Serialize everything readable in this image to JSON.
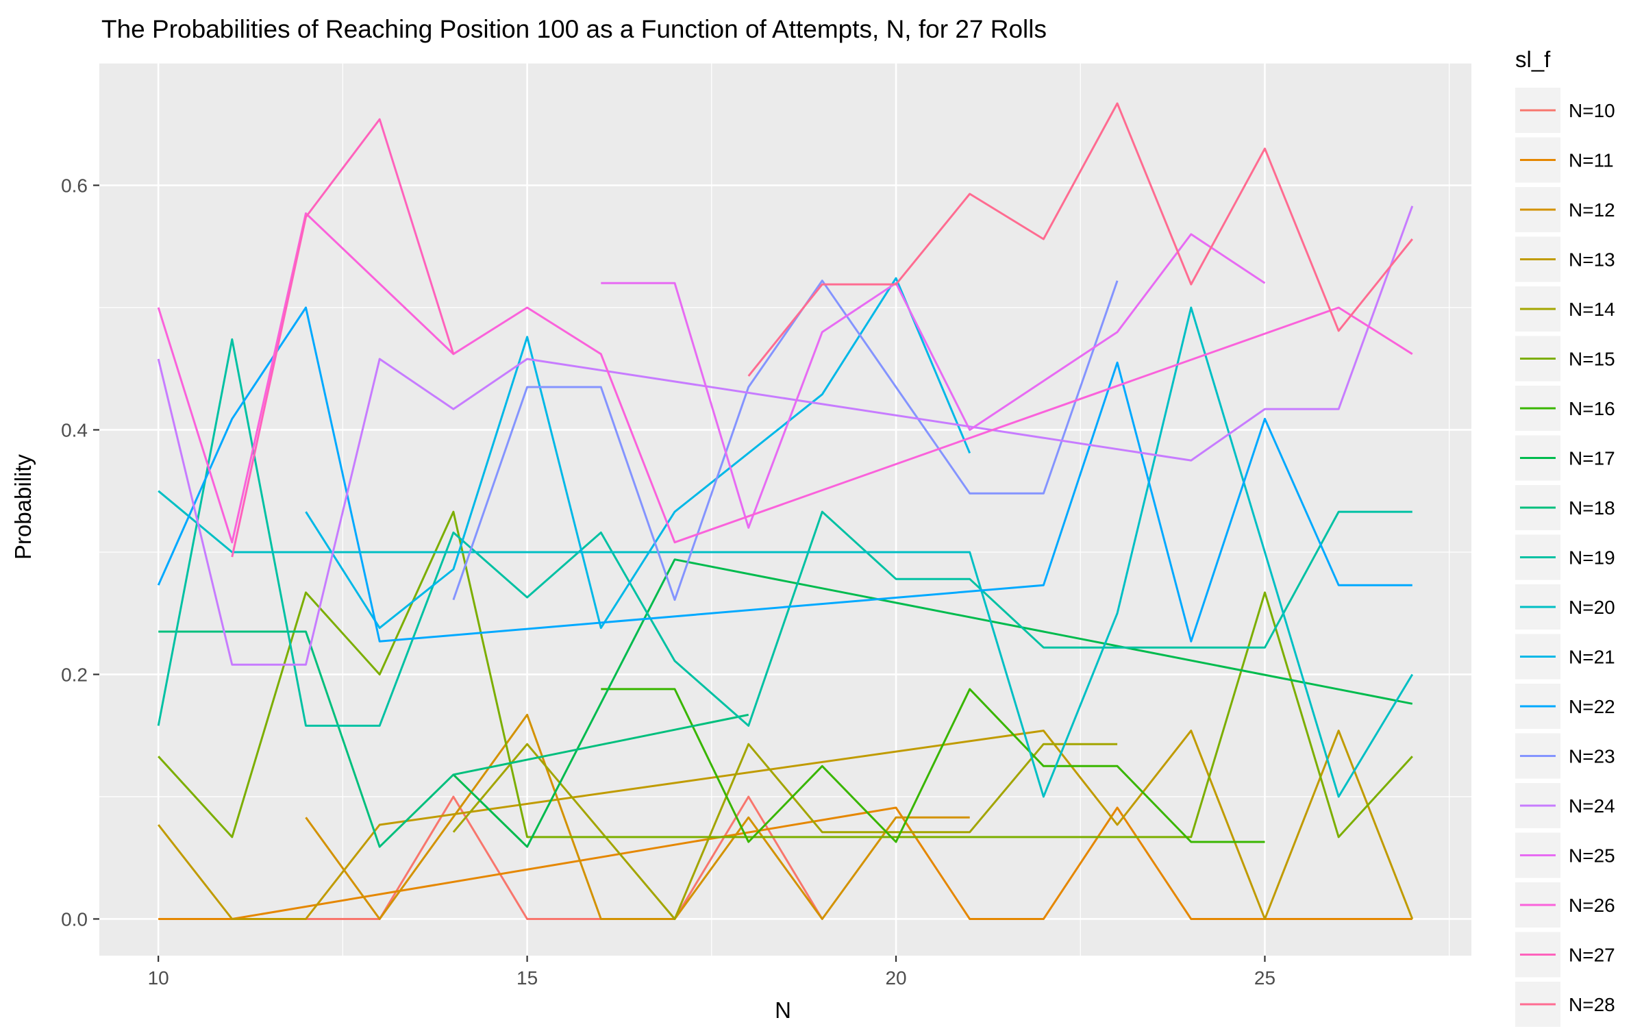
{
  "chart_data": {
    "type": "line",
    "title": "The Probabilities of Reaching Position 100 as a Function of Attempts, N, for 27 Rolls",
    "xlabel": "N",
    "ylabel": "Probability",
    "xlim": [
      9.2,
      27.8
    ],
    "ylim": [
      -0.03,
      0.7
    ],
    "x_ticks": [
      10,
      15,
      20,
      25
    ],
    "y_ticks": [
      0.0,
      0.2,
      0.4,
      0.6
    ],
    "x_tick_labels": [
      "10",
      "15",
      "20",
      "25"
    ],
    "y_tick_labels": [
      "0.0",
      "0.2",
      "0.4",
      "0.6"
    ],
    "grid": true,
    "legend": {
      "title": "sl_f",
      "position": "right"
    },
    "panel_background": "#EBEBEB",
    "series": [
      {
        "name": "N=10",
        "color": "#F8766D",
        "points": [
          [
            10,
            0.0
          ],
          [
            13,
            0.0
          ],
          [
            14,
            0.1
          ],
          [
            15,
            0.0
          ],
          [
            17,
            0.0
          ],
          [
            18,
            0.1
          ],
          [
            19,
            0.0
          ]
        ]
      },
      {
        "name": "N=11",
        "color": "#E58700",
        "points": [
          [
            10,
            0.0
          ],
          [
            11,
            0.0
          ],
          [
            20,
            0.091
          ],
          [
            21,
            0.0
          ],
          [
            22,
            0.0
          ],
          [
            23,
            0.091
          ],
          [
            24,
            0.0
          ],
          [
            27,
            0.0
          ]
        ]
      },
      {
        "name": "N=12",
        "color": "#D39200",
        "points": [
          [
            12,
            0.083
          ],
          [
            13,
            0.0
          ],
          [
            15,
            0.167
          ],
          [
            16,
            0.0
          ],
          [
            17,
            0.0
          ],
          [
            18,
            0.083
          ],
          [
            19,
            0.0
          ],
          [
            20,
            0.083
          ],
          [
            21,
            0.083
          ]
        ]
      },
      {
        "name": "N=13",
        "color": "#C09B00",
        "points": [
          [
            10,
            0.077
          ],
          [
            11,
            0.0
          ],
          [
            12,
            0.0
          ],
          [
            13,
            0.077
          ],
          [
            22,
            0.154
          ],
          [
            23,
            0.077
          ],
          [
            24,
            0.154
          ],
          [
            25,
            0.0
          ],
          [
            26,
            0.154
          ],
          [
            27,
            0.0
          ]
        ]
      },
      {
        "name": "N=14",
        "color": "#A3A500",
        "points": [
          [
            14,
            0.071
          ],
          [
            15,
            0.143
          ],
          [
            17,
            0.0
          ],
          [
            18,
            0.143
          ],
          [
            19,
            0.071
          ],
          [
            21,
            0.071
          ],
          [
            22,
            0.143
          ],
          [
            23,
            0.143
          ]
        ]
      },
      {
        "name": "N=15",
        "color": "#7CAE00",
        "points": [
          [
            10,
            0.133
          ],
          [
            11,
            0.067
          ],
          [
            12,
            0.267
          ],
          [
            13,
            0.2
          ],
          [
            14,
            0.333
          ],
          [
            15,
            0.067
          ],
          [
            24,
            0.067
          ],
          [
            25,
            0.267
          ],
          [
            26,
            0.067
          ],
          [
            27,
            0.133
          ]
        ]
      },
      {
        "name": "N=16",
        "color": "#39B600",
        "points": [
          [
            16,
            0.188
          ],
          [
            17,
            0.188
          ],
          [
            18,
            0.063
          ],
          [
            19,
            0.125
          ],
          [
            20,
            0.063
          ],
          [
            21,
            0.188
          ],
          [
            22,
            0.125
          ],
          [
            23,
            0.125
          ],
          [
            24,
            0.063
          ],
          [
            25,
            0.063
          ]
        ]
      },
      {
        "name": "N=17",
        "color": "#00BB4E",
        "points": [
          [
            14,
            0.118
          ],
          [
            15,
            0.059
          ],
          [
            17,
            0.294
          ],
          [
            27,
            0.176
          ]
        ]
      },
      {
        "name": "N=18",
        "color": "#00BF7D",
        "points": [
          [
            10,
            0.235
          ],
          [
            12,
            0.235
          ],
          [
            13,
            0.059
          ],
          [
            14,
            0.118
          ],
          [
            18,
            0.167
          ]
        ]
      },
      {
        "name": "N=19",
        "color": "#00C1A3",
        "points": [
          [
            10,
            0.158
          ],
          [
            11,
            0.474
          ],
          [
            12,
            0.158
          ],
          [
            13,
            0.158
          ],
          [
            14,
            0.316
          ],
          [
            15,
            0.263
          ],
          [
            16,
            0.316
          ],
          [
            17,
            0.211
          ],
          [
            18,
            0.158
          ],
          [
            19,
            0.333
          ],
          [
            20,
            0.278
          ],
          [
            21,
            0.278
          ],
          [
            22,
            0.222
          ],
          [
            25,
            0.222
          ],
          [
            26,
            0.333
          ],
          [
            27,
            0.333
          ]
        ]
      },
      {
        "name": "N=20",
        "color": "#00BFC4",
        "points": [
          [
            10,
            0.35
          ],
          [
            11,
            0.3
          ],
          [
            21,
            0.3
          ],
          [
            22,
            0.1
          ],
          [
            23,
            0.25
          ],
          [
            24,
            0.5
          ],
          [
            26,
            0.1
          ],
          [
            27,
            0.2
          ]
        ]
      },
      {
        "name": "N=21",
        "color": "#00B8E7",
        "points": [
          [
            12,
            0.333
          ],
          [
            13,
            0.238
          ],
          [
            14,
            0.286
          ],
          [
            15,
            0.476
          ],
          [
            16,
            0.238
          ],
          [
            17,
            0.333
          ],
          [
            19,
            0.429
          ],
          [
            20,
            0.524
          ],
          [
            21,
            0.381
          ]
        ]
      },
      {
        "name": "N=22",
        "color": "#00A9FF",
        "points": [
          [
            10,
            0.273
          ],
          [
            11,
            0.409
          ],
          [
            12,
            0.5
          ],
          [
            13,
            0.227
          ],
          [
            22,
            0.273
          ],
          [
            23,
            0.455
          ],
          [
            24,
            0.227
          ],
          [
            25,
            0.409
          ],
          [
            26,
            0.273
          ],
          [
            27,
            0.273
          ]
        ]
      },
      {
        "name": "N=23",
        "color": "#8494FF",
        "points": [
          [
            14,
            0.261
          ],
          [
            15,
            0.435
          ],
          [
            16,
            0.435
          ],
          [
            17,
            0.261
          ],
          [
            18,
            0.435
          ],
          [
            19,
            0.522
          ],
          [
            21,
            0.348
          ],
          [
            22,
            0.348
          ],
          [
            23,
            0.522
          ]
        ]
      },
      {
        "name": "N=24",
        "color": "#C77CFF",
        "points": [
          [
            10,
            0.458
          ],
          [
            11,
            0.208
          ],
          [
            12,
            0.208
          ],
          [
            13,
            0.458
          ],
          [
            14,
            0.417
          ],
          [
            15,
            0.458
          ],
          [
            24,
            0.375
          ],
          [
            25,
            0.417
          ],
          [
            26,
            0.417
          ],
          [
            27,
            0.583
          ]
        ]
      },
      {
        "name": "N=25",
        "color": "#E76BF3",
        "points": [
          [
            16,
            0.52
          ],
          [
            17,
            0.52
          ],
          [
            18,
            0.32
          ],
          [
            19,
            0.48
          ],
          [
            20,
            0.52
          ],
          [
            21,
            0.4
          ],
          [
            23,
            0.48
          ],
          [
            24,
            0.56
          ],
          [
            25,
            0.52
          ]
        ]
      },
      {
        "name": "N=26",
        "color": "#FA62DB",
        "points": [
          [
            10,
            0.5
          ],
          [
            11,
            0.308
          ],
          [
            12,
            0.577
          ],
          [
            14,
            0.462
          ],
          [
            15,
            0.5
          ],
          [
            16,
            0.462
          ],
          [
            17,
            0.308
          ],
          [
            26,
            0.5
          ],
          [
            27,
            0.462
          ]
        ]
      },
      {
        "name": "N=27",
        "color": "#FF62BC",
        "points": [
          [
            11,
            0.296
          ],
          [
            12,
            0.574
          ],
          [
            13,
            0.654
          ],
          [
            14,
            0.462
          ]
        ]
      },
      {
        "name": "N=28",
        "color": "#FF6C91",
        "points": [
          [
            18,
            0.444
          ],
          [
            19,
            0.519
          ],
          [
            20,
            0.519
          ],
          [
            21,
            0.593
          ],
          [
            22,
            0.556
          ],
          [
            23,
            0.667
          ],
          [
            24,
            0.519
          ],
          [
            25,
            0.63
          ],
          [
            26,
            0.481
          ],
          [
            27,
            0.556
          ]
        ]
      }
    ]
  }
}
